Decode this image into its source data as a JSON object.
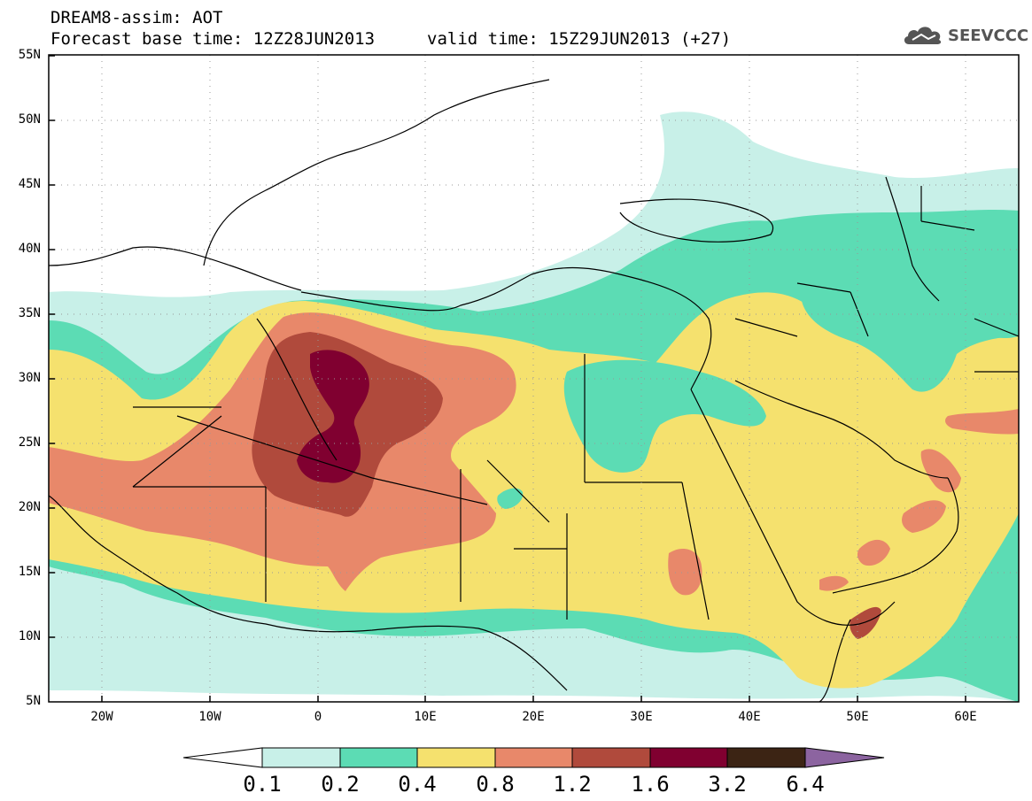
{
  "header": {
    "title_line1": "DREAM8-assim: AOT",
    "forecast_base": "Forecast base time: 12Z28JUN2013",
    "valid_time": "valid time: 15Z29JUN2013 (+27)",
    "logo_text": "SEEVCCC",
    "logo_icon": "cloud-icon"
  },
  "map": {
    "lat_labels": [
      "55N",
      "50N",
      "45N",
      "40N",
      "35N",
      "30N",
      "25N",
      "20N",
      "15N",
      "10N",
      "5N"
    ],
    "lon_labels": [
      "20W",
      "10W",
      "0",
      "10E",
      "20E",
      "30E",
      "40E",
      "50E",
      "60E"
    ]
  },
  "colorbar": {
    "labels": [
      "0.1",
      "0.2",
      "0.4",
      "0.8",
      "1.2",
      "1.6",
      "3.2",
      "6.4"
    ],
    "colors": [
      "#ffffff",
      "#c8f0e8",
      "#5cdcb4",
      "#f5e16e",
      "#e8886a",
      "#b04a3c",
      "#800030",
      "#3c2414",
      "#8c64a0"
    ]
  },
  "colors": {
    "c1": "#c8f0e8",
    "c2": "#5cdcb4",
    "c3": "#f5e16e",
    "c4": "#e8886a",
    "c5": "#b04a3c",
    "c6": "#800030"
  }
}
